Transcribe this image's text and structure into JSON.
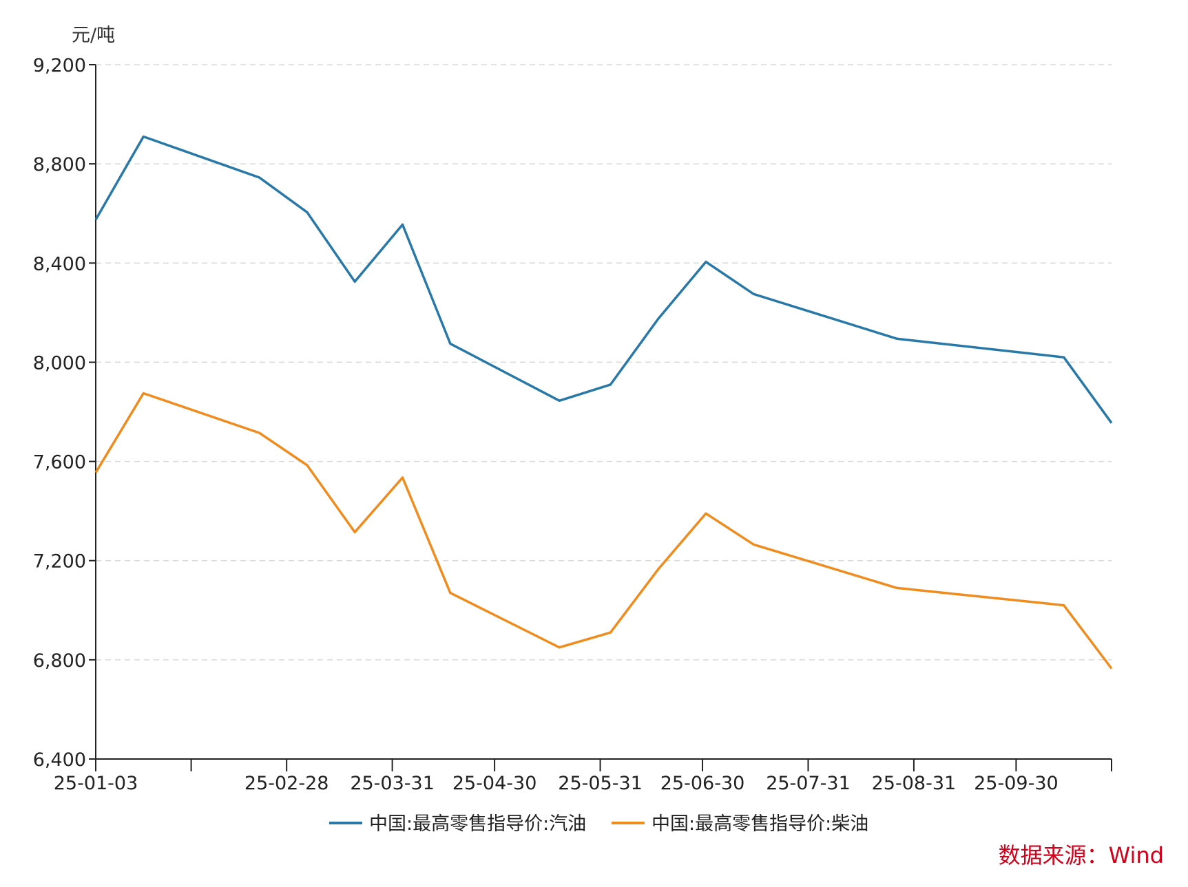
{
  "chart_data": {
    "type": "line",
    "ylabel": "元/吨",
    "ylim": [
      6400,
      9200
    ],
    "yticks": [
      6400,
      6800,
      7200,
      7600,
      8000,
      8400,
      8800,
      9200
    ],
    "ytick_labels": [
      "6,400",
      "6,800",
      "7,200",
      "7,600",
      "8,000",
      "8,400",
      "8,800",
      "9,200"
    ],
    "xlim": [
      "2025-01-03",
      "2025-10-28"
    ],
    "xticks": [
      "2025-01-03",
      "2025-01-31",
      "2025-02-28",
      "2025-03-31",
      "2025-04-30",
      "2025-05-31",
      "2025-06-30",
      "2025-07-31",
      "2025-08-31",
      "2025-09-30",
      "2025-10-28"
    ],
    "xtick_labels": [
      "25-01-03",
      "",
      "25-02-28",
      "25-03-31",
      "25-04-30",
      "25-05-31",
      "25-06-30",
      "25-07-31",
      "25-08-31",
      "25-09-30",
      ""
    ],
    "grid": true,
    "legend_position": "bottom",
    "series": [
      {
        "name": "中国:最高零售指导价:汽油",
        "color": "#2878a8",
        "points": [
          [
            "2025-01-03",
            8575
          ],
          [
            "2025-01-17",
            8910
          ],
          [
            "2025-02-20",
            8745
          ],
          [
            "2025-03-06",
            8605
          ],
          [
            "2025-03-20",
            8325
          ],
          [
            "2025-04-03",
            8555
          ],
          [
            "2025-04-17",
            8075
          ],
          [
            "2025-05-19",
            7845
          ],
          [
            "2025-06-03",
            7910
          ],
          [
            "2025-06-17",
            8175
          ],
          [
            "2025-07-01",
            8405
          ],
          [
            "2025-07-15",
            8275
          ],
          [
            "2025-08-26",
            8095
          ],
          [
            "2025-10-14",
            8020
          ],
          [
            "2025-10-28",
            7755
          ]
        ]
      },
      {
        "name": "中国:最高零售指导价:柴油",
        "color": "#f08c1e",
        "points": [
          [
            "2025-01-03",
            7555
          ],
          [
            "2025-01-17",
            7875
          ],
          [
            "2025-02-20",
            7715
          ],
          [
            "2025-03-06",
            7585
          ],
          [
            "2025-03-20",
            7315
          ],
          [
            "2025-04-03",
            7535
          ],
          [
            "2025-04-17",
            7070
          ],
          [
            "2025-05-19",
            6850
          ],
          [
            "2025-06-03",
            6910
          ],
          [
            "2025-06-17",
            7165
          ],
          [
            "2025-07-01",
            7390
          ],
          [
            "2025-07-15",
            7265
          ],
          [
            "2025-08-26",
            7090
          ],
          [
            "2025-10-14",
            7020
          ],
          [
            "2025-10-28",
            6765
          ]
        ]
      }
    ]
  },
  "source_note": "数据来源：Wind"
}
